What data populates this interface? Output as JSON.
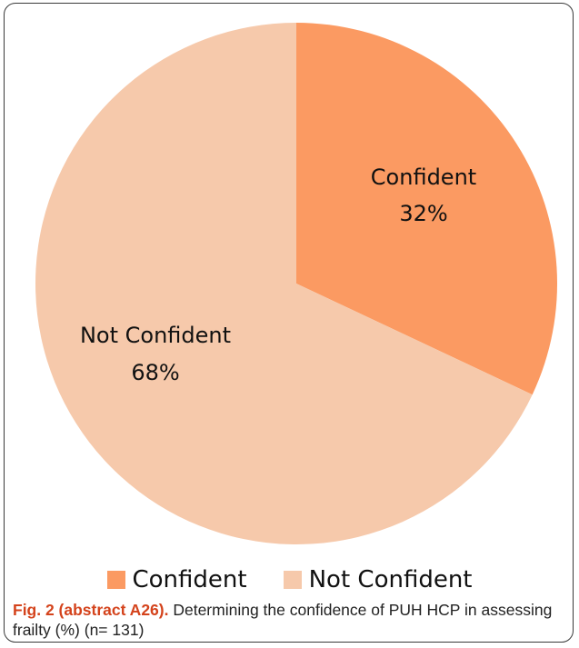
{
  "chart_data": {
    "type": "pie",
    "categories": [
      "Confident",
      "Not Confident"
    ],
    "values": [
      32,
      68
    ],
    "unit": "%",
    "colors": [
      "#fb9a62",
      "#f6c9ab"
    ],
    "start": "12 o'clock, clockwise",
    "slice_labels": [
      {
        "name": "Confident",
        "value_text": "32%"
      },
      {
        "name": "Not Confident",
        "value_text": "68%"
      }
    ],
    "legend": {
      "placement": "bottom",
      "entries": [
        "Confident",
        "Not Confident"
      ]
    },
    "title": "",
    "xlabel": "",
    "ylabel": ""
  },
  "caption": {
    "label": "Fig. 2 (abstract A26).",
    "text": " Determining the confidence of PUH HCP in assessing frailty (%) (n= 131)"
  }
}
